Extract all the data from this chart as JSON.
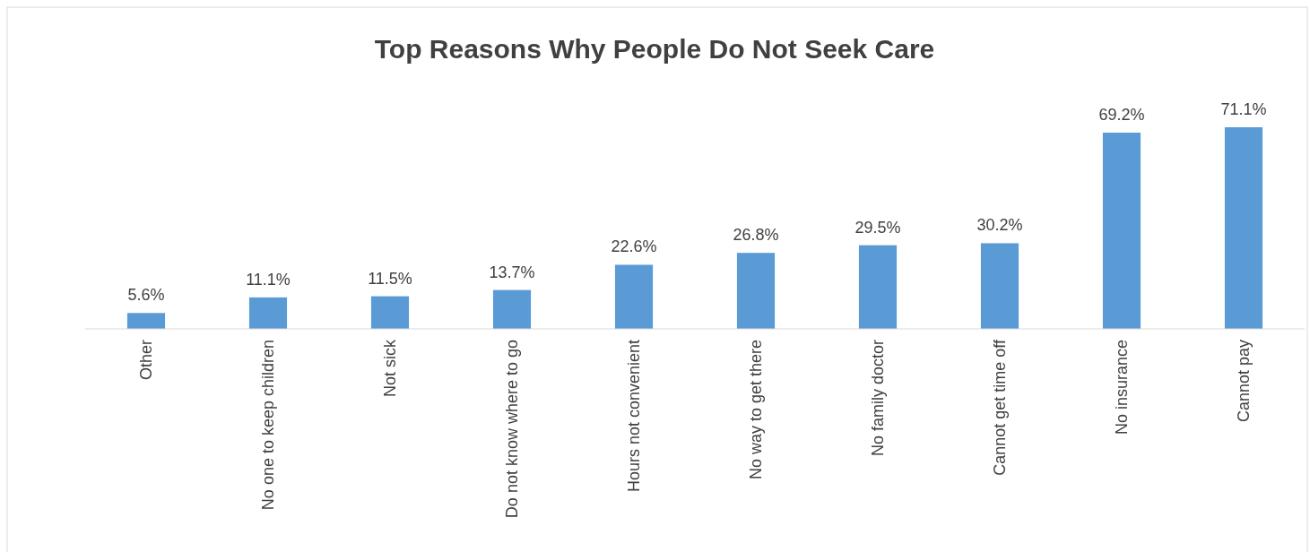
{
  "chart_data": {
    "type": "bar",
    "title": "Top Reasons Why People Do Not Seek Care",
    "categories": [
      "Other",
      "No one to keep children",
      "Not sick",
      "Do not know where to go",
      "Hours not convenient",
      "No way to get there",
      "No family doctor",
      "Cannot get time off",
      "No insurance",
      "Cannot pay"
    ],
    "values": [
      5.6,
      11.1,
      11.5,
      13.7,
      22.6,
      26.8,
      29.5,
      30.2,
      69.2,
      71.1
    ],
    "value_labels": [
      "5.6%",
      "11.1%",
      "11.5%",
      "13.7%",
      "22.6%",
      "26.8%",
      "29.5%",
      "30.2%",
      "69.2%",
      "71.1%"
    ],
    "color": "#5b9bd5"
  }
}
